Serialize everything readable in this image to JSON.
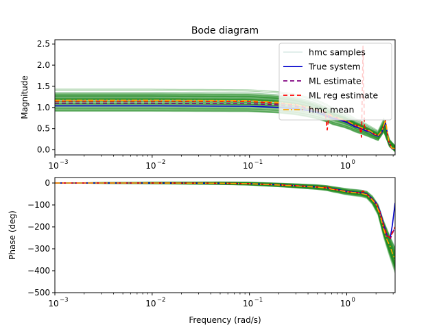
{
  "chart_data": {
    "type": "line",
    "title": "Bode diagram",
    "legend": {
      "placement": "top-right",
      "entries": [
        {
          "label": "hmc samples",
          "color": "#cfe3df",
          "style": "solid"
        },
        {
          "label": "True system",
          "color": "#0000cc",
          "style": "solid"
        },
        {
          "label": "ML estimate",
          "color": "#800080",
          "style": "dashed"
        },
        {
          "label": "ML reg estimate",
          "color": "#ff0000",
          "style": "dashed"
        },
        {
          "label": "hmc mean",
          "color": "#ffa500",
          "style": "dashdot"
        }
      ]
    },
    "xscale": "log",
    "xlim": [
      0.001,
      3.1416
    ],
    "xticks": [
      0.001,
      0.01,
      0.1,
      1
    ],
    "xtick_labels": [
      "10",
      "10",
      "10",
      "10"
    ],
    "xtick_exponents": [
      "−3",
      "−2",
      "−1",
      "0"
    ],
    "xlabel": "Frequency (rad/s)",
    "subplots": [
      {
        "name": "magnitude",
        "ylabel": "Magnitude",
        "ylim": [
          -0.12,
          2.6
        ],
        "yticks": [
          0.0,
          0.5,
          1.0,
          1.5,
          2.0,
          2.5
        ],
        "ytick_labels": [
          "0.0",
          "0.5",
          "1.0",
          "1.5",
          "2.0",
          "2.5"
        ],
        "band_color": "#228b22",
        "series": [
          {
            "name": "True system",
            "color": "#0000cc",
            "x": [
              0.001,
              0.01,
              0.1,
              0.2,
              0.3,
              0.4,
              0.5,
              0.62,
              0.7,
              0.85,
              1.0,
              1.2,
              1.4,
              1.5,
              1.6,
              1.75,
              1.9,
              2.1,
              2.3,
              2.5,
              2.7,
              2.9,
              3.1416
            ],
            "y": [
              1.04,
              1.04,
              1.03,
              1.0,
              0.97,
              0.93,
              0.88,
              0.8,
              0.75,
              0.7,
              0.65,
              0.55,
              0.5,
              0.47,
              0.44,
              0.42,
              0.36,
              0.32,
              0.42,
              0.66,
              0.2,
              0.03,
              0.02
            ]
          },
          {
            "name": "ML estimate",
            "color": "#800080",
            "x": [
              0.001,
              0.01,
              0.1,
              0.2,
              0.3,
              0.4,
              0.5,
              0.62,
              0.7,
              0.85,
              1.0,
              1.2,
              1.4,
              1.5,
              1.6,
              1.75,
              1.9,
              2.1,
              2.3,
              2.5,
              2.7,
              2.9,
              3.1416
            ],
            "y": [
              1.1,
              1.1,
              1.09,
              1.06,
              1.02,
              0.97,
              0.92,
              0.84,
              0.78,
              0.72,
              0.67,
              0.57,
              0.52,
              0.49,
              0.46,
              0.43,
              0.37,
              0.33,
              0.43,
              0.68,
              0.2,
              0.04,
              0.03
            ]
          },
          {
            "name": "ML reg estimate",
            "color": "#ff0000",
            "x": [
              0.001,
              0.01,
              0.1,
              0.2,
              0.3,
              0.4,
              0.5,
              0.6,
              0.63,
              0.66,
              0.7,
              0.85,
              1.0,
              1.2,
              1.35,
              1.42,
              1.47,
              1.52,
              1.6,
              1.75,
              1.9,
              2.1,
              2.3,
              2.5,
              2.7,
              2.9,
              3.1416
            ],
            "y": [
              1.15,
              1.15,
              1.14,
              1.1,
              1.06,
              1.0,
              0.94,
              0.9,
              0.47,
              0.88,
              0.8,
              0.73,
              0.68,
              0.6,
              0.55,
              0.3,
              2.45,
              0.55,
              0.47,
              0.44,
              0.38,
              0.33,
              0.44,
              0.7,
              0.2,
              0.03,
              0.02
            ]
          },
          {
            "name": "hmc mean",
            "color": "#ffa500",
            "x": [
              0.001,
              0.01,
              0.1,
              0.2,
              0.3,
              0.4,
              0.5,
              0.62,
              0.7,
              0.85,
              1.0,
              1.2,
              1.4,
              1.5,
              1.6,
              1.75,
              1.9,
              2.1,
              2.3,
              2.5,
              2.7,
              2.9,
              3.1416
            ],
            "y": [
              1.17,
              1.17,
              1.16,
              1.12,
              1.07,
              1.01,
              0.95,
              0.87,
              0.8,
              0.74,
              0.69,
              0.59,
              0.53,
              0.5,
              0.47,
              0.44,
              0.38,
              0.34,
              0.45,
              0.7,
              0.21,
              0.04,
              0.03
            ]
          }
        ]
      },
      {
        "name": "phase",
        "ylabel": "Phase (deg)",
        "ylim": [
          -500,
          25
        ],
        "yticks": [
          0,
          -100,
          -200,
          -300,
          -400,
          -500
        ],
        "ytick_labels": [
          "0",
          "−100",
          "−200",
          "−300",
          "−400",
          "−500"
        ],
        "band_color": "#228b22",
        "series": [
          {
            "name": "True system",
            "color": "#0000cc",
            "x": [
              0.001,
              0.01,
              0.05,
              0.1,
              0.2,
              0.3,
              0.5,
              0.62,
              0.7,
              0.85,
              1.0,
              1.2,
              1.4,
              1.6,
              1.8,
              2.0,
              2.2,
              2.4,
              2.6,
              2.8,
              2.95,
              3.1416
            ],
            "y": [
              0,
              0,
              -1,
              -3,
              -8,
              -12,
              -18,
              -22,
              -26,
              -32,
              -38,
              -42,
              -44,
              -50,
              -70,
              -90,
              -130,
              -190,
              -240,
              -250,
              -190,
              -90
            ]
          },
          {
            "name": "ML estimate",
            "color": "#800080",
            "x": [
              0.001,
              0.01,
              0.05,
              0.1,
              0.2,
              0.3,
              0.5,
              0.62,
              0.7,
              0.85,
              1.0,
              1.2,
              1.4,
              1.6,
              1.8,
              2.0,
              2.2,
              2.4,
              2.6,
              2.8,
              2.95,
              3.1416
            ],
            "y": [
              0,
              0,
              -1,
              -3,
              -9,
              -13,
              -19,
              -23,
              -28,
              -34,
              -40,
              -44,
              -46,
              -52,
              -73,
              -95,
              -140,
              -200,
              -245,
              -255,
              -230,
              -200
            ]
          },
          {
            "name": "ML reg estimate",
            "color": "#ff0000",
            "x": [
              0.001,
              0.01,
              0.05,
              0.1,
              0.2,
              0.3,
              0.5,
              0.6,
              0.63,
              0.66,
              0.7,
              0.85,
              1.0,
              1.2,
              1.4,
              1.47,
              1.55,
              1.6,
              1.8,
              2.0,
              2.2,
              2.4,
              2.6,
              2.8,
              2.95,
              3.1416
            ],
            "y": [
              0,
              0,
              -1,
              -3,
              -8,
              -12,
              -18,
              -21,
              -13,
              -22,
              -27,
              -33,
              -39,
              -43,
              -46,
              -36,
              -45,
              -52,
              -72,
              -92,
              -135,
              -195,
              -240,
              -250,
              -225,
              -200
            ]
          },
          {
            "name": "hmc mean",
            "color": "#ffa500",
            "x": [
              0.001,
              0.01,
              0.05,
              0.1,
              0.2,
              0.3,
              0.5,
              0.62,
              0.7,
              0.85,
              1.0,
              1.2,
              1.4,
              1.6,
              1.8,
              2.0,
              2.2,
              2.4,
              2.6,
              2.8,
              2.95,
              3.1416
            ],
            "y": [
              0,
              0,
              -1,
              -3,
              -9,
              -13,
              -19,
              -23,
              -28,
              -34,
              -40,
              -44,
              -47,
              -53,
              -74,
              -97,
              -145,
              -210,
              -260,
              -290,
              -320,
              -350
            ]
          }
        ]
      }
    ]
  }
}
